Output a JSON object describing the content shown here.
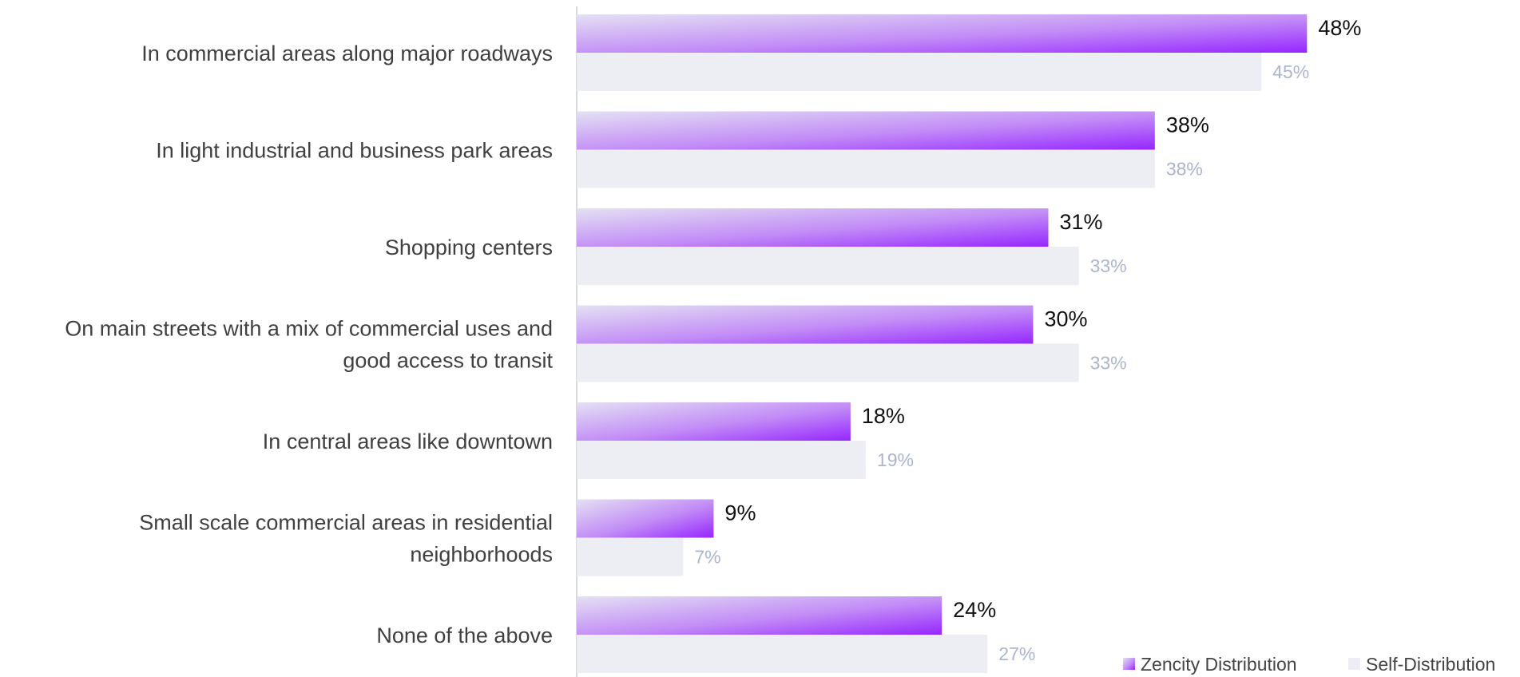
{
  "chart_data": {
    "type": "bar",
    "orientation": "horizontal",
    "categories": [
      "In commercial areas along major roadways",
      "In light industrial and business park areas",
      "Shopping centers",
      "On main streets with a mix of commercial uses and good access to transit",
      "In central areas like downtown",
      "Small scale commercial areas in residential neighborhoods",
      "None of the above"
    ],
    "category_lines": [
      [
        "In commercial areas along major roadways"
      ],
      [
        "In light industrial and business park areas"
      ],
      [
        "Shopping centers"
      ],
      [
        "On main streets with a mix of commercial uses and",
        "good access to transit"
      ],
      [
        "In central areas like downtown"
      ],
      [
        "Small scale commercial areas in residential",
        "neighborhoods"
      ],
      [
        "None of the above"
      ]
    ],
    "series": [
      {
        "name": "Zencity Distribution",
        "values": [
          48,
          38,
          31,
          30,
          18,
          9,
          24
        ],
        "labels": [
          "48%",
          "38%",
          "31%",
          "30%",
          "18%",
          "9%",
          "24%"
        ],
        "color": "#9b30ff"
      },
      {
        "name": "Self-Distribution",
        "values": [
          45,
          38,
          33,
          33,
          19,
          7,
          27
        ],
        "labels": [
          "45%",
          "38%",
          "33%",
          "33%",
          "19%",
          "7%",
          "27%"
        ],
        "color": "#eceef3"
      }
    ],
    "xlim": [
      0,
      62
    ],
    "grid": false,
    "legend_position": "bottom-right"
  }
}
